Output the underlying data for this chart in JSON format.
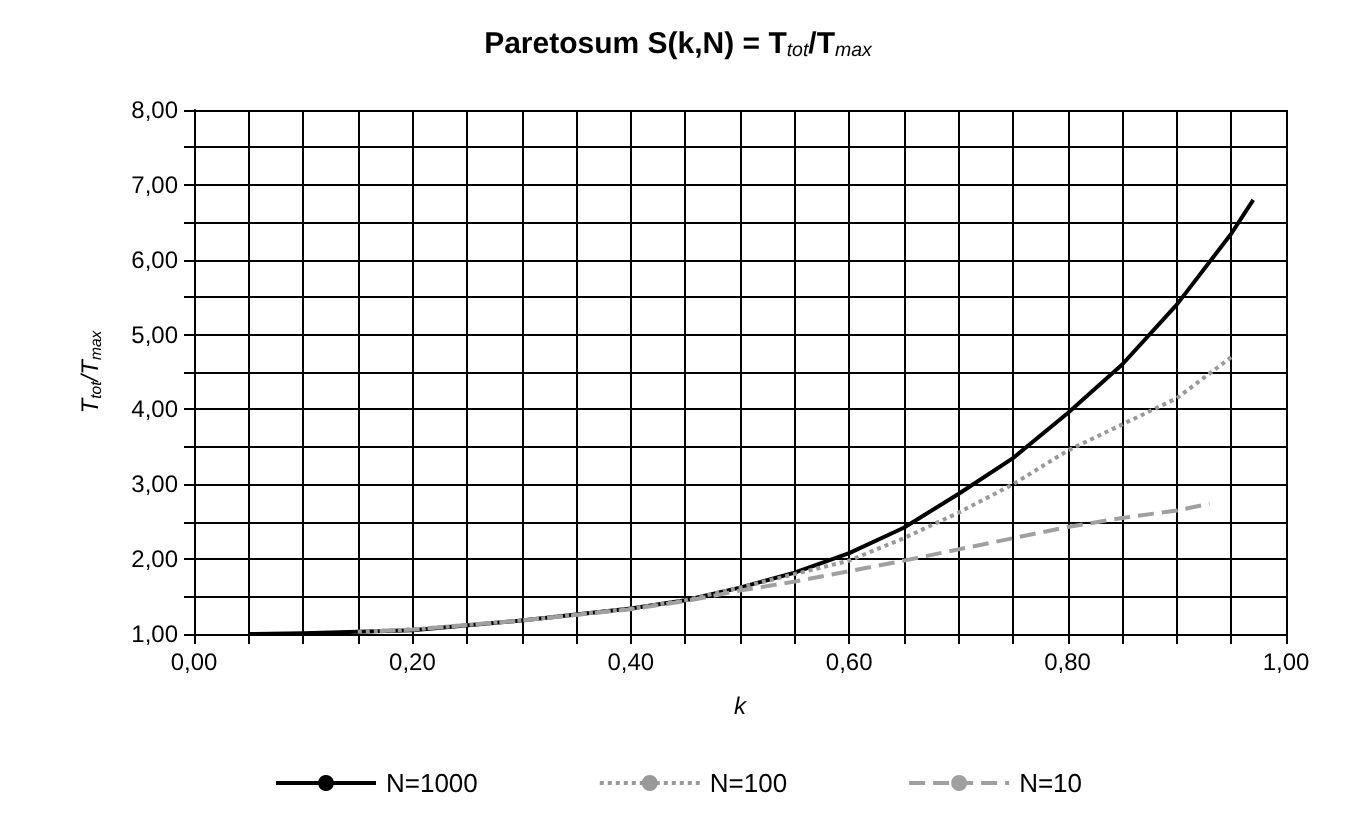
{
  "chart_data": {
    "type": "line",
    "title": "Paretosum S(k,N) = T$_{tot}$/T$_{max}$",
    "xlabel": "k",
    "ylabel": "T$_{tot}$/T$_{max}$",
    "xlim": [
      0,
      1
    ],
    "ylim": [
      1,
      8
    ],
    "xticks": [
      {
        "value": 0,
        "label": "0,00"
      },
      {
        "value": 0.05,
        "label": null
      },
      {
        "value": 0.1,
        "label": null
      },
      {
        "value": 0.15,
        "label": null
      },
      {
        "value": 0.2,
        "label": "0,20"
      },
      {
        "value": 0.25,
        "label": null
      },
      {
        "value": 0.3,
        "label": null
      },
      {
        "value": 0.35,
        "label": null
      },
      {
        "value": 0.4,
        "label": "0,40"
      },
      {
        "value": 0.45,
        "label": null
      },
      {
        "value": 0.5,
        "label": null
      },
      {
        "value": 0.55,
        "label": null
      },
      {
        "value": 0.6,
        "label": "0,60"
      },
      {
        "value": 0.65,
        "label": null
      },
      {
        "value": 0.7,
        "label": null
      },
      {
        "value": 0.75,
        "label": null
      },
      {
        "value": 0.8,
        "label": "0,80"
      },
      {
        "value": 0.85,
        "label": null
      },
      {
        "value": 0.9,
        "label": null
      },
      {
        "value": 0.95,
        "label": null
      },
      {
        "value": 1,
        "label": "1,00"
      }
    ],
    "yticks": [
      {
        "value": 1,
        "label": "1,00"
      },
      {
        "value": 1.5,
        "label": null
      },
      {
        "value": 2,
        "label": "2,00"
      },
      {
        "value": 2.5,
        "label": null
      },
      {
        "value": 3,
        "label": "3,00"
      },
      {
        "value": 3.5,
        "label": null
      },
      {
        "value": 4,
        "label": "4,00"
      },
      {
        "value": 4.5,
        "label": null
      },
      {
        "value": 5,
        "label": "5,00"
      },
      {
        "value": 5.5,
        "label": null
      },
      {
        "value": 6,
        "label": "6,00"
      },
      {
        "value": 6.5,
        "label": null
      },
      {
        "value": 7,
        "label": "7,00"
      },
      {
        "value": 7.5,
        "label": null
      },
      {
        "value": 8,
        "label": "8,00"
      }
    ],
    "grid": true,
    "legend": "bottom",
    "marker": "none",
    "series": [
      {
        "name": "N=1000",
        "color": "#000000",
        "line_style": "solid",
        "x": [
          0.05,
          0.1,
          0.2,
          0.3,
          0.4,
          0.45,
          0.5,
          0.55,
          0.6,
          0.65,
          0.7,
          0.75,
          0.8,
          0.85,
          0.9,
          0.95,
          0.97
        ],
        "values": [
          1.0,
          1.01,
          1.05,
          1.18,
          1.34,
          1.45,
          1.62,
          1.82,
          2.08,
          2.42,
          2.87,
          3.35,
          3.95,
          4.6,
          5.4,
          6.35,
          6.8
        ]
      },
      {
        "name": "N=100",
        "color": "#999999",
        "line_style": "dotted",
        "x": [
          0.15,
          0.2,
          0.3,
          0.4,
          0.45,
          0.5,
          0.55,
          0.6,
          0.65,
          0.7,
          0.75,
          0.8,
          0.85,
          0.9,
          0.95
        ],
        "values": [
          1.03,
          1.06,
          1.18,
          1.34,
          1.45,
          1.62,
          1.8,
          1.98,
          2.28,
          2.62,
          3.0,
          3.45,
          3.8,
          4.15,
          4.7
        ]
      },
      {
        "name": "N=10",
        "color": "#a0a0a0",
        "line_style": "dashed",
        "x": [
          0.17,
          0.2,
          0.3,
          0.4,
          0.45,
          0.5,
          0.55,
          0.6,
          0.65,
          0.7,
          0.75,
          0.8,
          0.85,
          0.9,
          0.93
        ],
        "values": [
          1.04,
          1.06,
          1.18,
          1.33,
          1.44,
          1.58,
          1.7,
          1.84,
          1.98,
          2.13,
          2.28,
          2.43,
          2.55,
          2.65,
          2.74
        ]
      }
    ]
  }
}
